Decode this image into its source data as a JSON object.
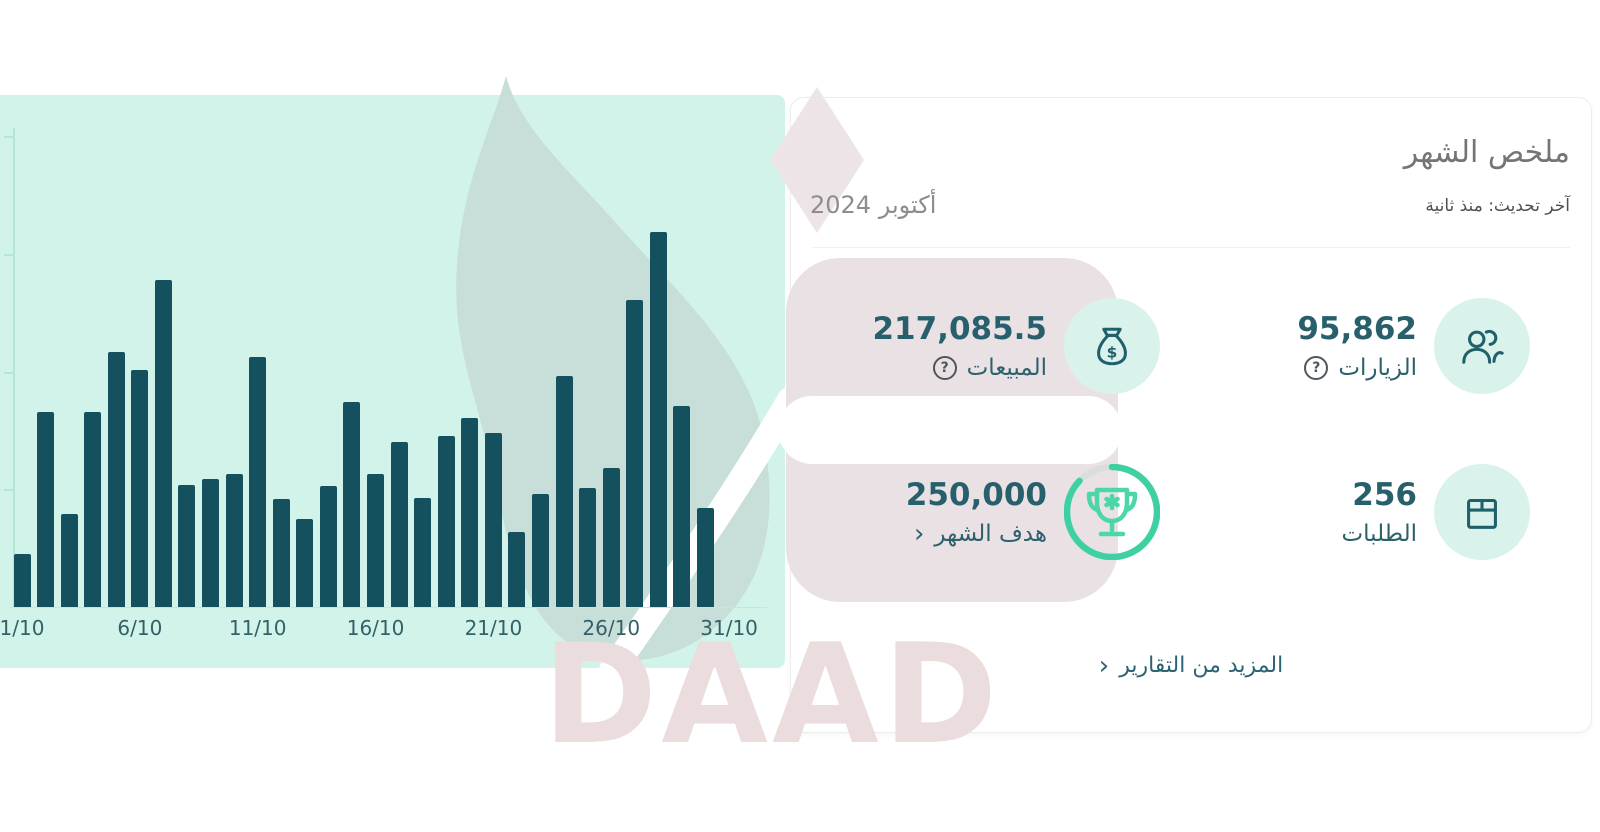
{
  "card": {
    "title": "ملخص الشهر",
    "subtitle": "آخر تحديث: منذ ثانية",
    "period": "أكتوبر 2024",
    "stats": [
      {
        "id": "visits",
        "value": "95,862",
        "label": "الزيارات",
        "icon": "users-icon",
        "has_help": true
      },
      {
        "id": "sales",
        "value": "217,085.5",
        "label": "المبيعات",
        "icon": "money-bag-icon",
        "has_help": true
      },
      {
        "id": "orders",
        "value": "256",
        "label": "الطلبات",
        "icon": "package-icon",
        "has_help": false
      },
      {
        "id": "goal",
        "value": "250,000",
        "label": "هدف الشهر",
        "icon": "trophy-icon",
        "chevron": "‹",
        "progress_pct": 87
      }
    ],
    "more_link": {
      "label": "المزيد من التقارير",
      "chevron": "‹"
    }
  },
  "watermark": {
    "text": "DAAD"
  },
  "colors": {
    "chart_background": "#d1f3e9",
    "bar": "#14505d",
    "stat_text": "#27606c",
    "goal_ring_green": "#3ed0a2",
    "trophy_green": "#4cd6a9",
    "icon_circle": "#d9f3ec",
    "watermark_gray": "#c7ded9",
    "watermark_pink": "#eae1e4"
  },
  "chart_data": {
    "type": "bar",
    "title": "",
    "xlabel": "",
    "ylabel": "",
    "categories": [
      "1/10",
      "2/10",
      "3/10",
      "4/10",
      "5/10",
      "6/10",
      "7/10",
      "8/10",
      "9/10",
      "10/10",
      "11/10",
      "12/10",
      "13/10",
      "14/10",
      "15/10",
      "16/10",
      "17/10",
      "18/10",
      "19/10",
      "20/10",
      "21/10",
      "22/10",
      "23/10",
      "24/10",
      "25/10",
      "26/10",
      "27/10",
      "28/10",
      "29/10",
      "30/10"
    ],
    "values": [
      2270,
      8280,
      3940,
      8280,
      10810,
      10050,
      13890,
      5200,
      5455,
      5655,
      10610,
      4595,
      3740,
      5150,
      8690,
      5655,
      7020,
      4645,
      7275,
      8030,
      7375,
      3180,
      4800,
      9800,
      5050,
      5910,
      13030,
      15910,
      8535,
      4190
    ],
    "xticklabels": [
      "1/10",
      "6/10",
      "11/10",
      "16/10",
      "21/10",
      "26/10",
      "31/10"
    ],
    "xtick_days": [
      1,
      6,
      11,
      16,
      21,
      26,
      31
    ],
    "axis_days_total": 31,
    "note": "no bar rendered for 31/10",
    "ylim": [
      0,
      20000
    ],
    "ytick_interval": 5000,
    "yticklabels_visible": false,
    "grid": false,
    "legend": false
  }
}
